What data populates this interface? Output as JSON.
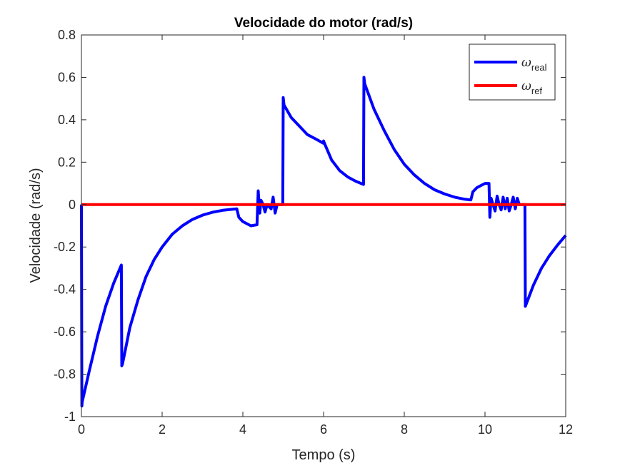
{
  "chart_data": {
    "type": "line",
    "title": "Velocidade do motor (rad/s)",
    "xlabel": "Tempo (s)",
    "ylabel": "Velocidade (rad/s)",
    "xlim": [
      0,
      12
    ],
    "ylim": [
      -1,
      0.8
    ],
    "xticks": [
      0,
      2,
      4,
      6,
      8,
      10,
      12
    ],
    "xtick_labels": [
      "0",
      "2",
      "4",
      "6",
      "8",
      "10",
      "12"
    ],
    "yticks": [
      -1,
      -0.8,
      -0.6,
      -0.4,
      -0.2,
      0,
      0.2,
      0.4,
      0.6,
      0.8
    ],
    "ytick_labels": [
      "-1",
      "-0.8",
      "-0.6",
      "-0.4",
      "-0.2",
      "0",
      "0.2",
      "0.4",
      "0.6",
      "0.8"
    ],
    "grid": false,
    "legend_position": "top-right",
    "series": [
      {
        "name": "ω real",
        "legend_symbol": "ω",
        "legend_subscript": "real",
        "color": "#0000ff",
        "x": [
          0,
          0.01,
          0.02,
          0.2,
          0.4,
          0.6,
          0.8,
          0.99,
          1.0,
          1.02,
          1.2,
          1.4,
          1.6,
          1.8,
          2.0,
          2.25,
          2.5,
          2.75,
          3.0,
          3.25,
          3.5,
          3.75,
          3.85,
          3.9,
          4.0,
          4.2,
          4.35,
          4.38,
          4.42,
          4.45,
          4.5,
          4.55,
          4.6,
          4.7,
          4.75,
          4.8,
          4.85,
          4.99,
          5.0,
          5.02,
          5.2,
          5.4,
          5.6,
          5.8,
          5.99,
          6.0,
          6.02,
          6.2,
          6.4,
          6.6,
          6.8,
          6.99,
          7.0,
          7.02,
          7.25,
          7.5,
          7.75,
          8.0,
          8.25,
          8.5,
          8.75,
          9.0,
          9.25,
          9.5,
          9.65,
          9.7,
          9.8,
          9.9,
          10.0,
          10.1,
          10.12,
          10.15,
          10.2,
          10.25,
          10.3,
          10.35,
          10.4,
          10.45,
          10.5,
          10.55,
          10.6,
          10.65,
          10.7,
          10.75,
          10.8,
          10.85,
          10.9,
          10.99,
          11.0,
          11.02,
          11.2,
          11.4,
          11.6,
          11.8,
          12.0
        ],
        "y": [
          0.0,
          -0.95,
          -0.93,
          -0.78,
          -0.62,
          -0.48,
          -0.37,
          -0.285,
          -0.76,
          -0.75,
          -0.58,
          -0.45,
          -0.34,
          -0.26,
          -0.2,
          -0.14,
          -0.1,
          -0.07,
          -0.05,
          -0.036,
          -0.027,
          -0.022,
          -0.02,
          -0.06,
          -0.08,
          -0.1,
          -0.095,
          0.065,
          -0.04,
          0.02,
          0.0,
          -0.035,
          0.0,
          -0.02,
          0.035,
          -0.04,
          0.0,
          0.0,
          0.505,
          0.47,
          0.41,
          0.37,
          0.33,
          0.31,
          0.29,
          0.3,
          0.29,
          0.21,
          0.16,
          0.13,
          0.11,
          0.095,
          0.6,
          0.57,
          0.45,
          0.35,
          0.26,
          0.19,
          0.14,
          0.1,
          0.07,
          0.05,
          0.035,
          0.025,
          0.022,
          0.06,
          0.08,
          0.09,
          0.1,
          0.1,
          -0.06,
          0.03,
          0.0,
          -0.03,
          0.04,
          0.0,
          -0.025,
          0.035,
          -0.02,
          0.03,
          -0.03,
          0.0,
          0.035,
          -0.02,
          0.03,
          0.0,
          0.0,
          0.0,
          -0.48,
          -0.47,
          -0.38,
          -0.3,
          -0.24,
          -0.19,
          -0.145
        ]
      },
      {
        "name": "ω ref",
        "legend_symbol": "ω",
        "legend_subscript": "ref",
        "color": "#ff0000",
        "x": [
          0,
          12
        ],
        "y": [
          0,
          0
        ]
      }
    ]
  }
}
